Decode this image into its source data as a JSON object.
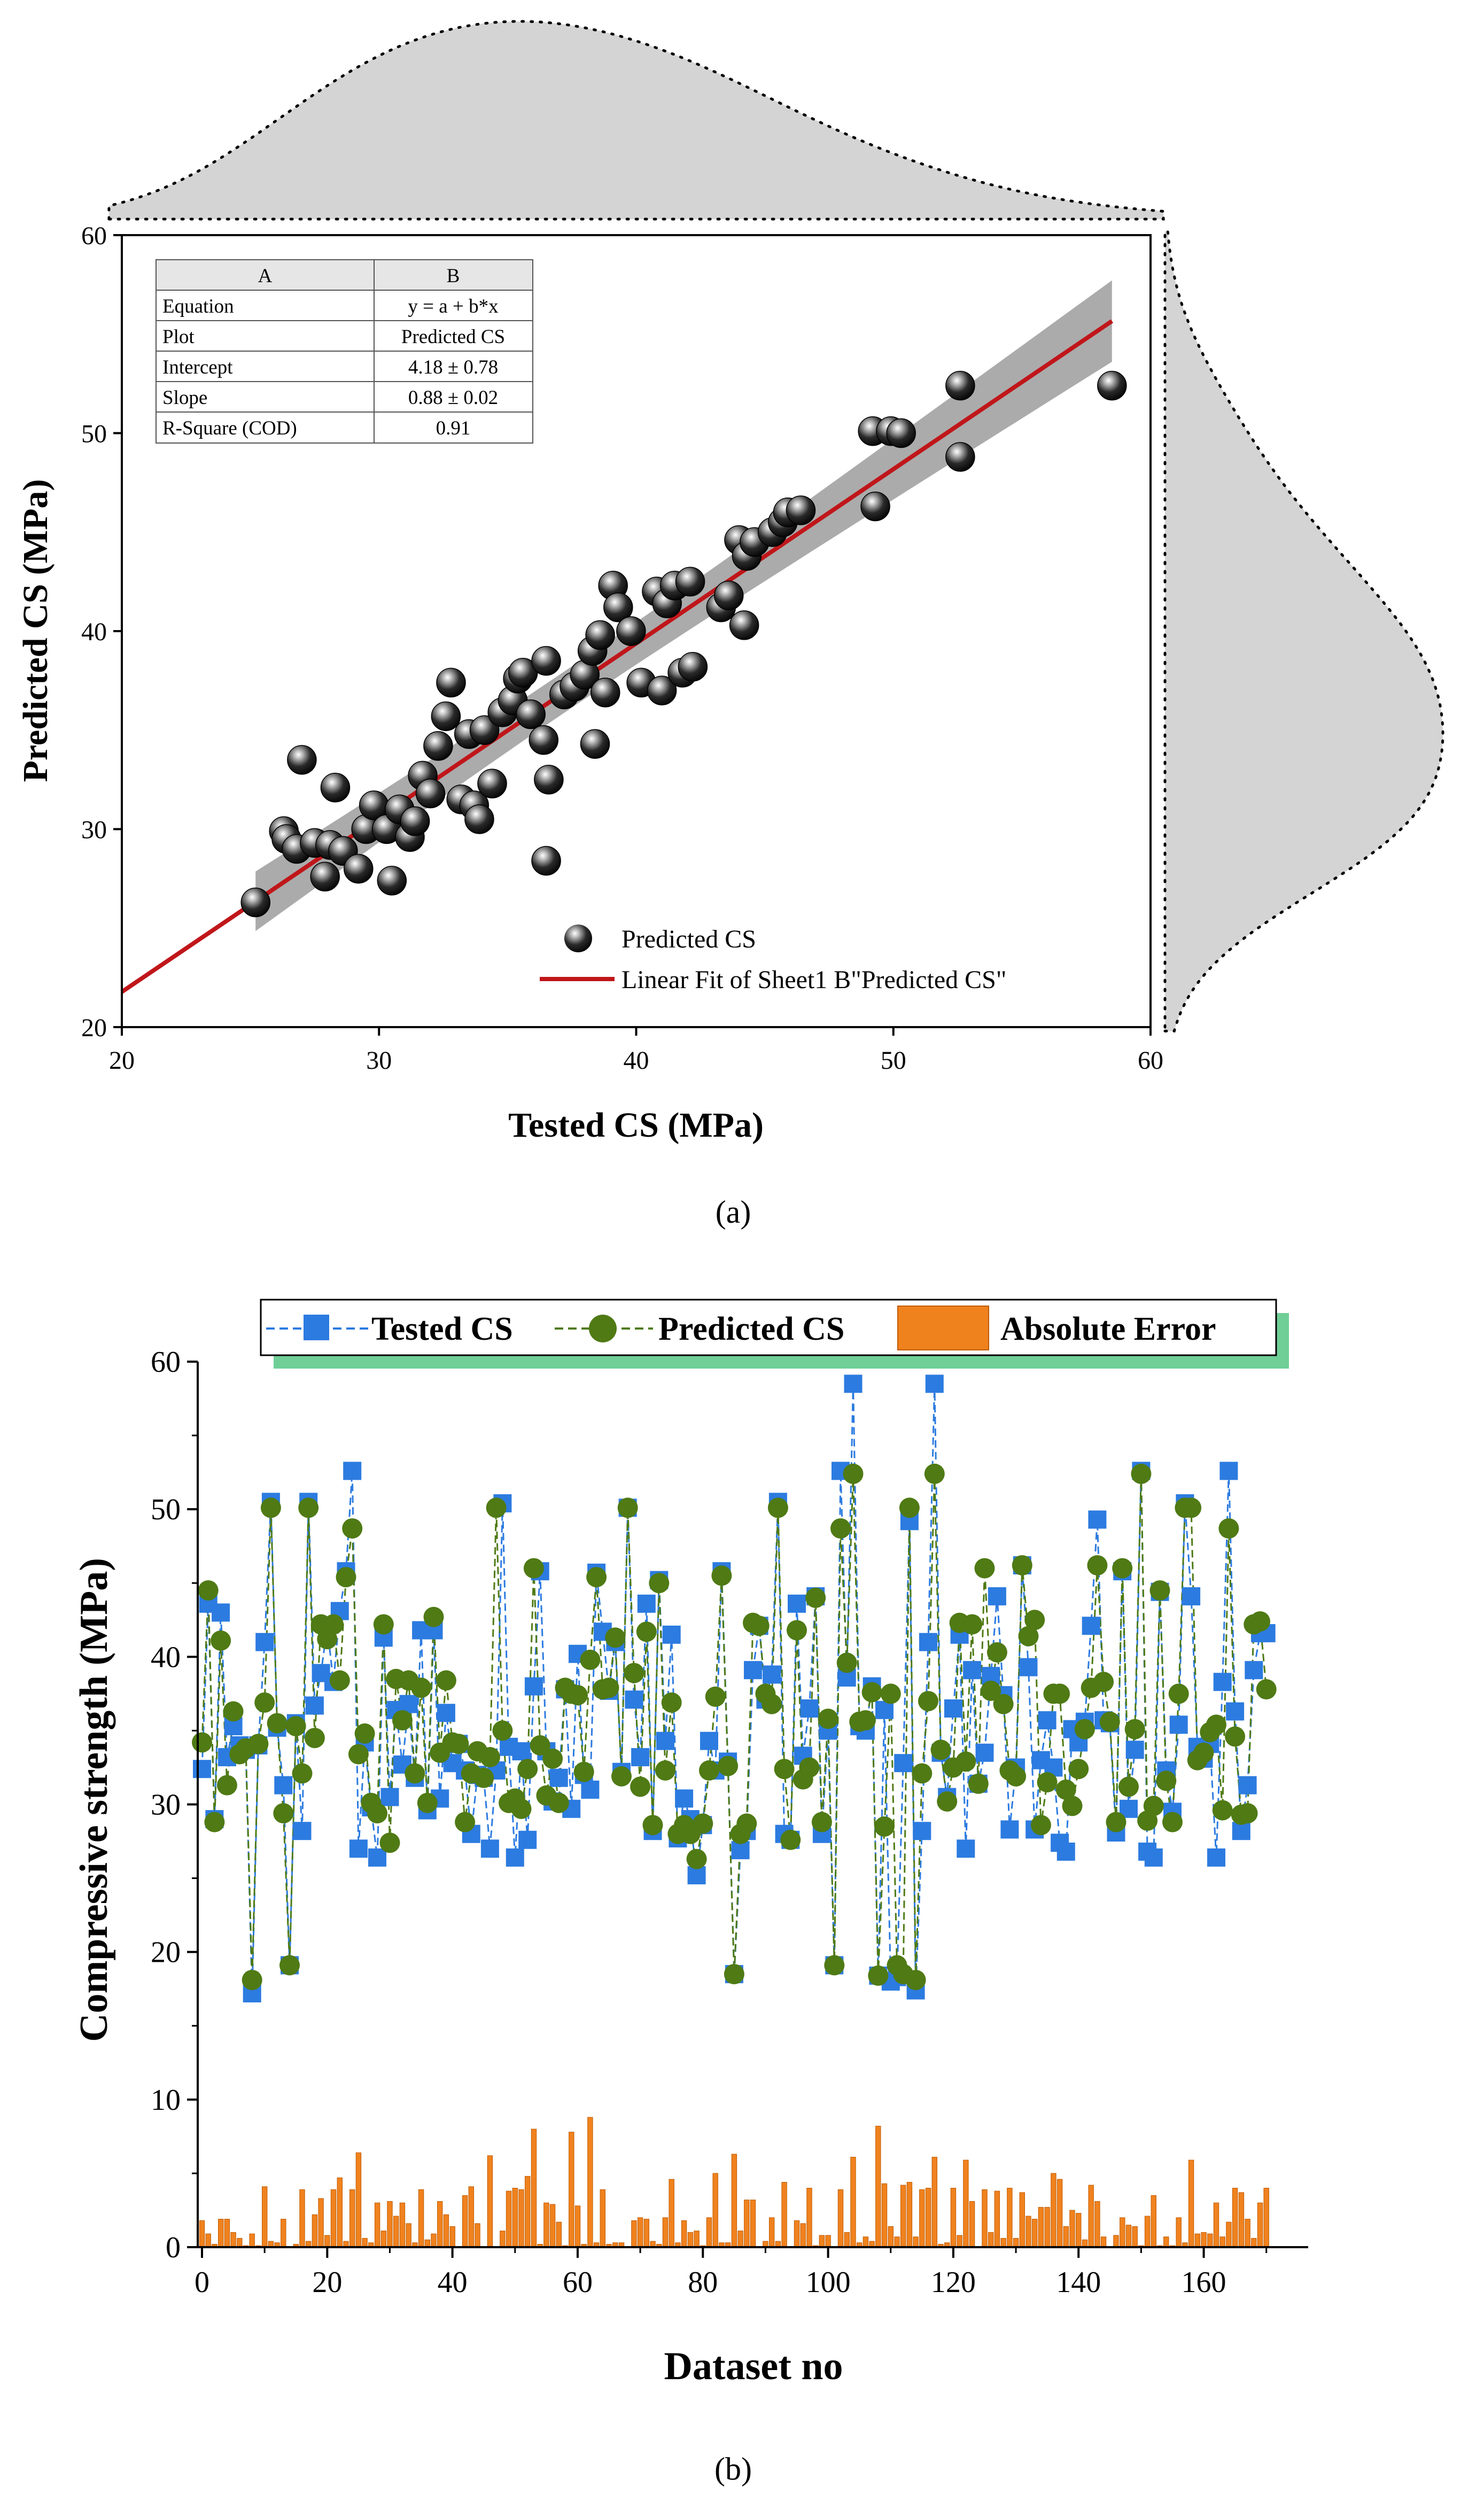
{
  "chart_data": [
    {
      "id": "a",
      "type": "scatter",
      "caption": "(a)",
      "xlabel": "Tested CS (MPa)",
      "ylabel": "Predicted CS (MPa)",
      "xlim": [
        20,
        60
      ],
      "ylim": [
        20,
        60
      ],
      "x_ticks": [
        "20",
        "30",
        "40",
        "50",
        "60"
      ],
      "y_ticks": [
        "20",
        "30",
        "40",
        "50",
        "60"
      ],
      "legend": [
        "Predicted CS",
        "Linear Fit of Sheet1 B\"Predicted CS\""
      ],
      "fit": {
        "intercept": 4.18,
        "slope": 0.88,
        "x_range": [
          20,
          58.5
        ]
      },
      "stats_table": {
        "headers": [
          "A",
          "B"
        ],
        "rows": [
          [
            "Equation",
            "y = a + b*x"
          ],
          [
            "Plot",
            "Predicted CS"
          ],
          [
            "Intercept",
            "4.18 ± 0.78"
          ],
          [
            "Slope",
            "0.88 ± 0.02"
          ],
          [
            "R-Square (COD)",
            "0.91"
          ]
        ]
      },
      "points": [
        [
          25.2,
          26.3
        ],
        [
          26.3,
          29.9
        ],
        [
          26.4,
          29.5
        ],
        [
          26.8,
          29.0
        ],
        [
          27.0,
          33.5
        ],
        [
          27.5,
          29.3
        ],
        [
          27.9,
          27.6
        ],
        [
          28.1,
          29.2
        ],
        [
          28.3,
          32.1
        ],
        [
          28.6,
          28.9
        ],
        [
          29.2,
          28.0
        ],
        [
          29.5,
          30.0
        ],
        [
          29.8,
          31.2
        ],
        [
          30.3,
          30.0
        ],
        [
          30.5,
          27.4
        ],
        [
          30.8,
          31.0
        ],
        [
          31.2,
          29.6
        ],
        [
          31.4,
          30.4
        ],
        [
          31.7,
          32.7
        ],
        [
          32.0,
          31.8
        ],
        [
          32.3,
          34.2
        ],
        [
          32.6,
          35.7
        ],
        [
          32.8,
          37.4
        ],
        [
          33.2,
          31.5
        ],
        [
          33.5,
          34.8
        ],
        [
          33.7,
          31.2
        ],
        [
          33.9,
          30.5
        ],
        [
          34.1,
          35.0
        ],
        [
          34.4,
          32.3
        ],
        [
          34.8,
          35.9
        ],
        [
          35.2,
          36.5
        ],
        [
          35.4,
          37.6
        ],
        [
          35.6,
          37.9
        ],
        [
          35.9,
          35.8
        ],
        [
          36.4,
          34.5
        ],
        [
          36.5,
          28.4
        ],
        [
          36.6,
          32.5
        ],
        [
          36.5,
          38.5
        ],
        [
          37.2,
          36.8
        ],
        [
          37.6,
          37.2
        ],
        [
          38.0,
          37.8
        ],
        [
          38.3,
          39.0
        ],
        [
          38.4,
          34.3
        ],
        [
          38.6,
          39.8
        ],
        [
          38.8,
          36.9
        ],
        [
          39.1,
          42.3
        ],
        [
          39.3,
          41.2
        ],
        [
          39.8,
          40.0
        ],
        [
          40.2,
          37.4
        ],
        [
          40.8,
          42.0
        ],
        [
          41.0,
          37.0
        ],
        [
          41.2,
          41.4
        ],
        [
          41.5,
          42.3
        ],
        [
          41.8,
          37.9
        ],
        [
          42.1,
          42.5
        ],
        [
          42.2,
          38.2
        ],
        [
          43.3,
          41.2
        ],
        [
          43.6,
          41.8
        ],
        [
          44.0,
          44.6
        ],
        [
          44.2,
          40.3
        ],
        [
          44.3,
          43.8
        ],
        [
          44.6,
          44.5
        ],
        [
          45.3,
          45.0
        ],
        [
          45.7,
          45.5
        ],
        [
          45.9,
          46.0
        ],
        [
          46.4,
          46.1
        ],
        [
          49.2,
          50.1
        ],
        [
          49.3,
          46.3
        ],
        [
          49.9,
          50.1
        ],
        [
          50.3,
          50.0
        ],
        [
          52.6,
          52.4
        ],
        [
          52.6,
          48.8
        ],
        [
          58.5,
          52.4
        ]
      ]
    },
    {
      "id": "b",
      "type": "line",
      "caption": "(b)",
      "xlabel": "Dataset no",
      "ylabel": "Compressive strength (MPa)",
      "xlim": [
        0,
        176
      ],
      "ylim": [
        0,
        60
      ],
      "x_ticks": [
        "0",
        "20",
        "40",
        "60",
        "80",
        "100",
        "120",
        "140",
        "160"
      ],
      "y_ticks": [
        "0",
        "10",
        "20",
        "30",
        "40",
        "50",
        "60"
      ],
      "series": [
        {
          "name": "Tested CS",
          "color": "#2c7be0",
          "values": [
            32.4,
            43.6,
            29.0,
            43.0,
            33.2,
            35.3,
            34.0,
            33.7,
            17.2,
            34.0,
            41.0,
            50.5,
            35.2,
            31.3,
            19.1,
            35.5,
            28.2,
            50.5,
            36.7,
            38.9,
            42.0,
            38.3,
            43.1,
            45.8,
            52.6,
            27.0,
            34.2,
            29.8,
            26.4,
            41.3,
            30.5,
            36.4,
            32.7,
            36.8,
            31.8,
            41.8,
            29.6,
            41.8,
            30.4,
            36.2,
            32.8,
            34.1,
            32.3,
            28.0,
            32.0,
            31.8,
            27.0,
            32.3,
            50.4,
            33.9,
            26.4,
            33.6,
            27.6,
            38.0,
            45.8,
            33.6,
            30.2,
            31.8,
            37.8,
            29.7,
            40.2,
            32.0,
            31.0,
            45.7,
            41.7,
            37.7,
            41.0,
            32.2,
            50.1,
            37.1,
            33.2,
            43.6,
            28.2,
            45.2,
            34.3,
            41.5,
            27.7,
            30.4,
            29.0,
            25.2,
            28.6,
            34.3,
            32.3,
            45.8,
            32.9,
            18.5,
            26.9,
            28.2,
            39.1,
            42.1,
            37.1,
            38.8,
            50.5,
            28.0,
            27.6,
            43.6,
            33.3,
            36.5,
            44.1,
            28.0,
            35.0,
            19.1,
            52.6,
            38.6,
            58.5,
            35.3,
            35.0,
            38.0,
            18.4,
            36.4,
            18.0,
            18.3,
            32.8,
            49.2,
            17.4,
            28.2,
            41.0,
            58.5,
            33.5,
            30.5,
            36.5,
            41.5,
            27.0,
            39.1,
            31.4,
            33.5,
            38.7,
            44.1,
            37.4,
            28.3,
            32.5,
            46.2,
            39.3,
            28.3,
            33.0,
            35.7,
            32.5,
            27.4,
            26.8,
            35.1,
            34.2,
            35.6,
            42.1,
            49.3,
            35.7,
            35.5,
            28.1,
            45.8,
            29.7,
            33.7,
            52.6,
            26.8,
            26.4,
            44.4,
            32.3,
            29.5,
            35.4,
            50.4,
            44.1,
            33.9,
            33.1,
            34.1,
            26.4,
            38.3,
            52.6,
            36.3,
            28.2,
            31.3,
            39.1,
            41.6,
            41.6
          ]
        },
        {
          "name": "Predicted CS",
          "color": "#4f7a14",
          "values": [
            34.2,
            44.5,
            28.8,
            41.1,
            31.3,
            36.3,
            33.4,
            33.8,
            18.1,
            34.1,
            36.9,
            50.1,
            35.5,
            29.4,
            19.1,
            35.3,
            32.1,
            50.1,
            34.5,
            42.2,
            41.2,
            42.2,
            38.4,
            45.4,
            48.7,
            33.4,
            34.8,
            30.1,
            29.4,
            42.2,
            27.4,
            38.5,
            35.7,
            38.4,
            32.1,
            37.9,
            30.1,
            42.7,
            33.5,
            38.4,
            34.2,
            34.1,
            28.8,
            32.1,
            33.6,
            31.8,
            33.2,
            50.1,
            35.0,
            30.1,
            30.4,
            29.7,
            32.4,
            46.0,
            34.0,
            30.6,
            33.1,
            30.1,
            37.9,
            37.5,
            37.4,
            32.2,
            39.8,
            45.4,
            37.8,
            37.9,
            41.3,
            31.9,
            50.1,
            38.9,
            31.2,
            41.7,
            28.6,
            45.0,
            32.3,
            36.9,
            28.0,
            28.6,
            28.0,
            26.3,
            28.7,
            32.3,
            37.3,
            45.5,
            32.6,
            18.5,
            28.0,
            28.7,
            42.3,
            42.1,
            37.5,
            36.8,
            50.1,
            32.4,
            27.6,
            41.8,
            31.7,
            32.5,
            44.0,
            28.8,
            35.8,
            19.1,
            48.7,
            39.6,
            52.4,
            35.6,
            35.7,
            37.6,
            18.4,
            28.5,
            37.5,
            19.1,
            18.5,
            50.1,
            18.1,
            32.1,
            37.0,
            52.4,
            33.7,
            30.2,
            32.5,
            42.3,
            32.9,
            42.2,
            31.4,
            46.0,
            37.7,
            40.3,
            36.8,
            32.3,
            31.9,
            46.2,
            41.4,
            42.5,
            28.6,
            31.5,
            37.5,
            37.5,
            31.0,
            29.9,
            32.4,
            35.1,
            37.9,
            46.2,
            38.3,
            35.6,
            28.8,
            46.0,
            31.2,
            35.1,
            52.4,
            28.9,
            29.9,
            44.5,
            31.6,
            28.8,
            37.5,
            50.1,
            50.1,
            33.0,
            33.5,
            34.9,
            35.4,
            29.6,
            48.7,
            34.6,
            29.3,
            29.4,
            42.2,
            42.4,
            37.8
          ]
        },
        {
          "name": "Absolute Error",
          "color": "#f0821e",
          "values": [
            1.8,
            0.9,
            0.2,
            1.9,
            1.9,
            1.0,
            0.6,
            0.1,
            0.9,
            0.1,
            4.1,
            0.4,
            0.3,
            1.9,
            0.0,
            0.2,
            3.9,
            0.4,
            2.2,
            3.3,
            0.8,
            3.9,
            4.7,
            0.4,
            3.9,
            6.4,
            0.6,
            0.3,
            3.0,
            1.1,
            3.1,
            2.1,
            3.0,
            1.6,
            0.3,
            3.9,
            0.5,
            0.9,
            3.1,
            2.2,
            1.4,
            0.0,
            3.5,
            4.1,
            1.6,
            0.0,
            6.2,
            0.0,
            1.1,
            3.8,
            4.0,
            3.9,
            4.8,
            8.0,
            0.2,
            3.0,
            2.9,
            1.7,
            0.1,
            7.8,
            2.8,
            0.2,
            8.8,
            0.3,
            3.9,
            0.2,
            0.3,
            0.3,
            0.0,
            1.8,
            2.0,
            1.9,
            0.4,
            0.2,
            2.0,
            4.6,
            0.3,
            1.8,
            1.0,
            1.1,
            0.1,
            2.0,
            5.0,
            0.3,
            0.3,
            6.3,
            1.1,
            3.2,
            3.2,
            0.0,
            0.4,
            2.0,
            0.4,
            4.4,
            0.0,
            1.8,
            1.6,
            4.0,
            0.1,
            0.8,
            0.8,
            0.0,
            3.9,
            1.0,
            6.1,
            0.3,
            0.7,
            0.4,
            8.2,
            4.3,
            1.4,
            0.7,
            4.2,
            4.4,
            0.7,
            3.9,
            4.0,
            6.1,
            0.2,
            0.3,
            4.0,
            0.8,
            5.9,
            3.1,
            0.0,
            3.9,
            1.0,
            3.8,
            0.6,
            4.0,
            0.6,
            3.7,
            2.1,
            1.9,
            2.7,
            2.7,
            5.0,
            4.6,
            1.4,
            2.5,
            2.3,
            0.5,
            4.2,
            3.1,
            0.7,
            0.0,
            0.8,
            2.0,
            1.5,
            1.4,
            0.1,
            2.1,
            3.5,
            0.1,
            0.7,
            0.1,
            2.0,
            0.3,
            5.9,
            0.9,
            1.0,
            0.9,
            3.0,
            0.7,
            1.7,
            4.0,
            3.7,
            1.9,
            0.6,
            3.0,
            4.0
          ]
        }
      ]
    }
  ]
}
